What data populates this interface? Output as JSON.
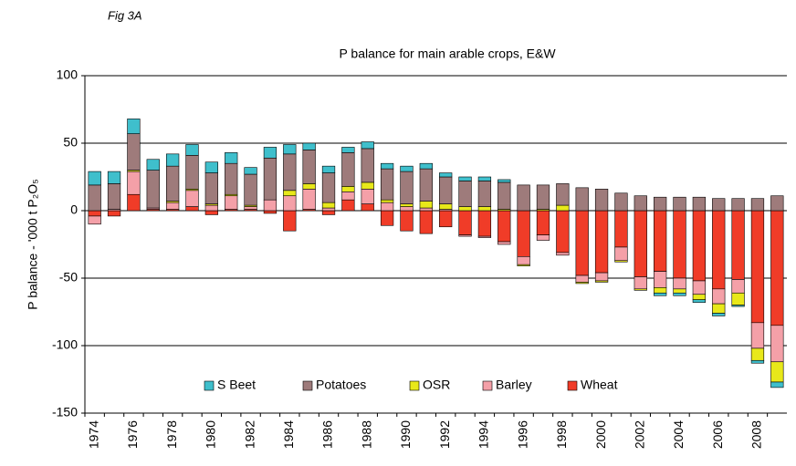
{
  "chart_data": {
    "type": "stacked_bar",
    "figure_label": "Fig 3A",
    "title": "P balance for main arable crops, E&W",
    "y_label": "P balance - '000 t P₂O₅",
    "categories": [
      "1974",
      null,
      "1976",
      null,
      "1978",
      null,
      "1980",
      null,
      "1982",
      null,
      "1984",
      null,
      "1986",
      null,
      "1988",
      null,
      "1990",
      null,
      "1992",
      null,
      "1994",
      null,
      "1996",
      null,
      "1998",
      null,
      "2000",
      null,
      "2002",
      null,
      "2004",
      null,
      "2006",
      null,
      "2008",
      null
    ],
    "series": [
      {
        "name": "Wheat",
        "color": "#f03c28",
        "values": [
          -4,
          -4,
          12,
          1,
          1,
          3,
          -3,
          1,
          1,
          -2,
          -15,
          1,
          -3,
          8,
          5,
          -11,
          -15,
          -17,
          -12,
          -18,
          -19,
          -23,
          -34,
          -18,
          -31,
          -48,
          -46,
          -27,
          -49,
          -45,
          -50,
          -52,
          -58,
          -51,
          -83,
          -85
        ]
      },
      {
        "name": "Barley",
        "color": "#f4a0a8",
        "values": [
          -6,
          1,
          17,
          1,
          5,
          12,
          4,
          10,
          2,
          8,
          11,
          15,
          2,
          6,
          11,
          6,
          3,
          2,
          1,
          -1,
          -1,
          -2,
          -6,
          -4,
          -2,
          -5,
          -6,
          -10,
          -9,
          -12,
          -8,
          -10,
          -11,
          -10,
          -19,
          -27
        ]
      },
      {
        "name": "OSR",
        "color": "#e8e81a",
        "values": [
          0,
          0,
          1,
          0,
          1,
          1,
          1,
          1,
          1,
          0,
          4,
          4,
          4,
          4,
          5,
          2,
          2,
          5,
          4,
          3,
          3,
          1,
          -1,
          1,
          4,
          -1,
          -1,
          -1,
          -1,
          -4,
          -3,
          -4,
          -7,
          -9,
          -9,
          -15
        ]
      },
      {
        "name": "Potatoes",
        "color": "#9e7b7b",
        "values": [
          19,
          19,
          27,
          28,
          26,
          25,
          23,
          23,
          23,
          31,
          27,
          25,
          22,
          25,
          25,
          23,
          24,
          24,
          20,
          19,
          19,
          20,
          19,
          18,
          16,
          17,
          16,
          13,
          11,
          10,
          10,
          10,
          9,
          9,
          9,
          11
        ]
      },
      {
        "name": "S Beet",
        "color": "#3fbfcc",
        "values": [
          10,
          9,
          11,
          8,
          9,
          8,
          8,
          8,
          5,
          8,
          7,
          5,
          5,
          4,
          5,
          4,
          4,
          4,
          3,
          3,
          3,
          2,
          0,
          0,
          0,
          0,
          0,
          0,
          0,
          -2,
          -2,
          -2,
          -2,
          -1,
          -2,
          -4
        ]
      }
    ],
    "legend_order": [
      4,
      3,
      2,
      1,
      0
    ],
    "ylim": [
      -150,
      100
    ],
    "yticks": [
      -150,
      -100,
      -50,
      0,
      50,
      100
    ],
    "grid": true
  }
}
